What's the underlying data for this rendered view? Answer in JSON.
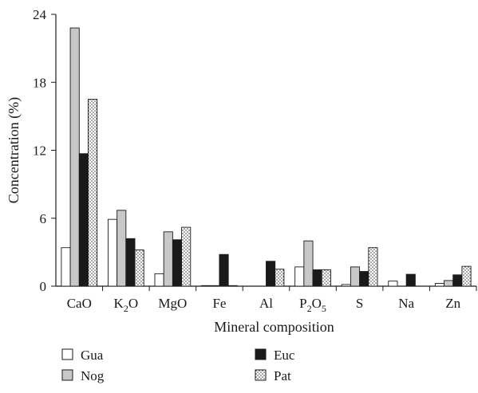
{
  "chart_data": {
    "type": "bar",
    "xlabel": "Mineral composition",
    "ylabel": "Concentration (%)",
    "ylim": [
      0,
      24
    ],
    "yticks": [
      "0",
      "6",
      "12",
      "18",
      "24"
    ],
    "grid": false,
    "legend_position": "bottom",
    "categories": [
      {
        "base": "CaO"
      },
      {
        "base": "K",
        "sub": "2",
        "tail": "O"
      },
      {
        "base": "MgO"
      },
      {
        "base": "Fe"
      },
      {
        "base": "Al"
      },
      {
        "base": "P",
        "sub": "2",
        "tail": "O",
        "sub2": "5"
      },
      {
        "base": "S"
      },
      {
        "base": "Na"
      },
      {
        "base": "Zn"
      }
    ],
    "series": [
      {
        "name": "Gua",
        "fill": "#ffffff",
        "values": [
          3.4,
          5.9,
          1.1,
          0.05,
          0,
          1.7,
          0.15,
          0.45,
          0.25
        ]
      },
      {
        "name": "Nog",
        "fill": "#c8c8c8",
        "values": [
          22.8,
          6.7,
          4.8,
          0.05,
          0,
          4.0,
          1.7,
          0,
          0.5
        ]
      },
      {
        "name": "Euc",
        "fill": "#1a1a1a",
        "values": [
          11.7,
          4.2,
          4.1,
          2.8,
          2.2,
          1.45,
          1.3,
          1.05,
          1.0
        ]
      },
      {
        "name": "Pat",
        "fill": "dots",
        "values": [
          16.5,
          3.2,
          5.2,
          0.05,
          1.5,
          1.45,
          3.4,
          0,
          1.75
        ]
      }
    ]
  }
}
